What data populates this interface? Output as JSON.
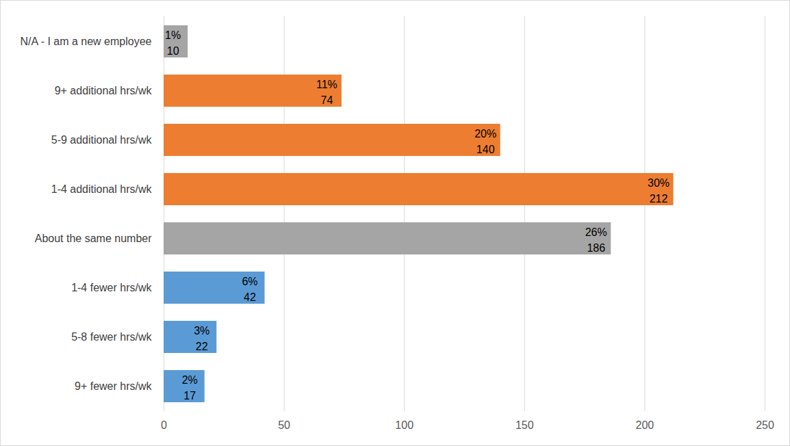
{
  "chart_data": {
    "type": "bar",
    "orientation": "horizontal",
    "categories": [
      "N/A - I am a new employee",
      "9+ additional hrs/wk",
      "5-9 additional hrs/wk",
      "1-4 additional hrs/wk",
      "About the same number",
      "1-4 fewer hrs/wk",
      "5-8 fewer hrs/wk",
      "9+ fewer hrs/wk"
    ],
    "values": [
      10,
      74,
      140,
      212,
      186,
      42,
      22,
      17
    ],
    "percent_labels": [
      "1%",
      "11%",
      "20%",
      "30%",
      "26%",
      "6%",
      "3%",
      "2%"
    ],
    "colors": [
      "#a5a5a5",
      "#ed7d31",
      "#ed7d31",
      "#ed7d31",
      "#a5a5a5",
      "#5b9bd5",
      "#5b9bd5",
      "#5b9bd5"
    ],
    "xlim": [
      0,
      250
    ],
    "xticks": [
      0,
      50,
      100,
      150,
      200,
      250
    ],
    "grid": true,
    "data_labels": true
  }
}
